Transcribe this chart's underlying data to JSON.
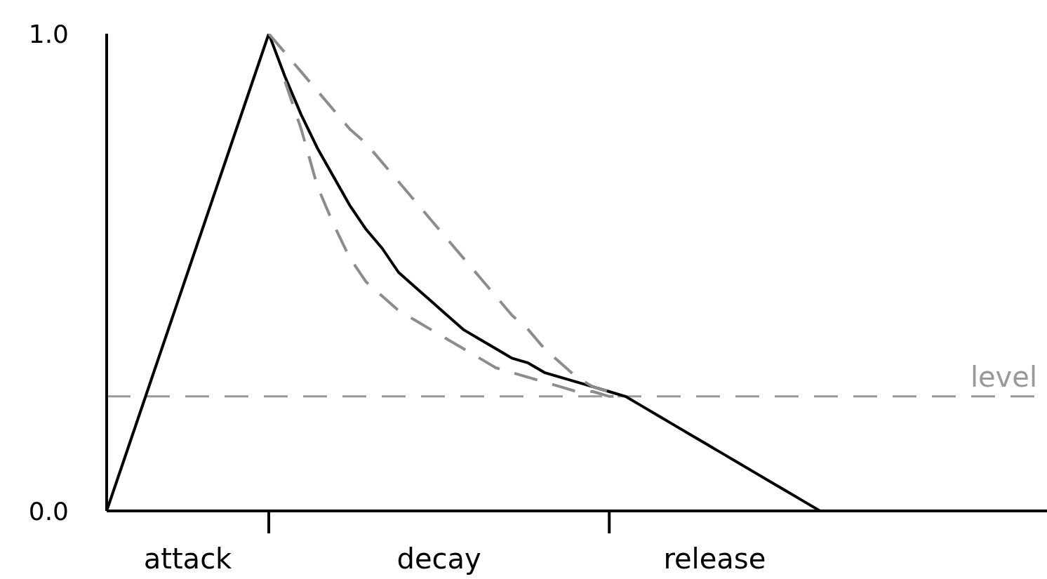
{
  "chart_data": {
    "type": "line",
    "categories": [
      null,
      null,
      null,
      null,
      null,
      null,
      null,
      null,
      null,
      null,
      null,
      null,
      null,
      null,
      null,
      null,
      null,
      null,
      null,
      null,
      null,
      null,
      null,
      null,
      null,
      null,
      null,
      null,
      null,
      null,
      null,
      null,
      null,
      null,
      null,
      null,
      null,
      null,
      null,
      null,
      null,
      null,
      null,
      null,
      null,
      null,
      null,
      null,
      null,
      null,
      null,
      null,
      null,
      null,
      null,
      null,
      null,
      null,
      null
    ],
    "series": [
      {
        "color": "#000000",
        "line_style": "solid",
        "values": [
          0,
          0.1,
          0.2,
          0.3,
          0.4,
          0.5,
          0.6,
          0.7,
          0.8,
          0.9,
          1.0,
          0.91,
          0.83,
          0.76,
          0.7,
          0.64,
          0.59,
          0.55,
          0.5,
          0.47,
          0.44,
          0.41,
          0.38,
          0.36,
          0.34,
          0.32,
          0.31,
          0.29,
          0.28,
          0.27,
          0.26,
          0.25,
          0.24,
          0.22,
          0.2,
          0.18,
          0.16,
          0.14,
          0.12,
          0.1,
          0.08,
          0.06,
          0.04,
          0.02,
          0,
          null,
          null,
          null,
          null,
          null,
          null,
          null,
          null,
          null,
          null,
          null,
          null,
          null,
          null
        ]
      },
      {
        "color": "#8c8c8c",
        "line_style": "dashed",
        "values": [
          null,
          null,
          null,
          null,
          null,
          null,
          null,
          null,
          null,
          null,
          1.0,
          0.96,
          0.92,
          0.88,
          0.84,
          0.8,
          0.77,
          0.73,
          0.69,
          0.65,
          0.61,
          0.57,
          0.53,
          0.49,
          0.45,
          0.41,
          0.38,
          0.34,
          0.31,
          0.28,
          0.26,
          0.25,
          null,
          null,
          null,
          null,
          null,
          null,
          null,
          null,
          null,
          null,
          null,
          null,
          null,
          null,
          null,
          null,
          null,
          null,
          null,
          null,
          null,
          null,
          null,
          null,
          null,
          null,
          null
        ]
      },
      {
        "color": "#8c8c8c",
        "line_style": "dashed",
        "values": [
          null,
          null,
          null,
          null,
          null,
          null,
          null,
          null,
          null,
          null,
          null,
          0.9,
          0.8,
          0.68,
          0.6,
          0.53,
          0.48,
          0.45,
          0.42,
          0.4,
          0.38,
          0.36,
          0.34,
          0.32,
          0.3,
          0.29,
          0.28,
          0.27,
          0.26,
          0.25,
          0.25,
          0.24,
          0.24,
          null,
          null,
          null,
          null,
          null,
          null,
          null,
          null,
          null,
          null,
          null,
          null,
          null,
          null,
          null,
          null,
          null,
          null,
          null,
          null,
          null,
          null,
          null,
          null,
          null,
          null
        ]
      }
    ],
    "ylim": [
      0,
      1
    ],
    "yticks": [
      {
        "value": 0,
        "label": "0.0"
      },
      {
        "value": 1,
        "label": "1.0"
      }
    ],
    "ref_lines": [
      {
        "axis": "y",
        "value": 0.24,
        "label": "level",
        "color": "#999999",
        "line_style": "dashed"
      }
    ],
    "annotations": [
      "attack",
      "decay",
      "release"
    ],
    "marker": "none",
    "grid": false
  }
}
